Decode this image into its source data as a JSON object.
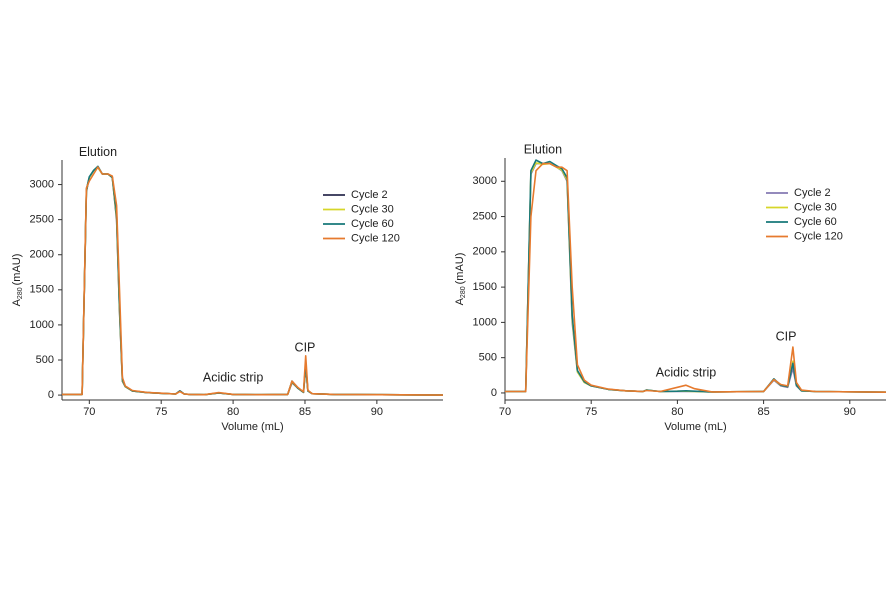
{
  "chart_data": [
    {
      "type": "line",
      "xlabel": "Volume (mL)",
      "ylabel": "A",
      "ylabel_sub": "280",
      "ylabel_unit": "(mAU)",
      "xlim": [
        68.1,
        94.6
      ],
      "ylim": [
        -70,
        3350
      ],
      "xticks": [
        70,
        75,
        80,
        85,
        90
      ],
      "yticks": [
        0,
        500,
        1000,
        1500,
        2000,
        2500,
        3000
      ],
      "grid": false,
      "legend": "upper right",
      "x": [
        68.1,
        69.5,
        69.8,
        70.0,
        70.3,
        70.6,
        70.9,
        71.3,
        71.6,
        71.9,
        72.1,
        72.3,
        72.5,
        73,
        74,
        75,
        76,
        76.3,
        76.6,
        77,
        78,
        79,
        80,
        82,
        83.8,
        84.1,
        84.5,
        84.9,
        85.05,
        85.2,
        85.5,
        87,
        90,
        94.6
      ],
      "series": [
        {
          "name": "Cycle 2",
          "color": "#2b2d4f",
          "values": [
            10,
            10,
            2900,
            3100,
            3200,
            3250,
            3150,
            3150,
            3100,
            2500,
            1200,
            200,
            120,
            60,
            35,
            25,
            15,
            60,
            15,
            10,
            5,
            30,
            10,
            5,
            10,
            180,
            100,
            40,
            400,
            60,
            20,
            10,
            5,
            0
          ]
        },
        {
          "name": "Cycle 30",
          "color": "#d6d62a",
          "values": [
            10,
            10,
            2920,
            3100,
            3200,
            3240,
            3150,
            3150,
            3100,
            2550,
            1250,
            210,
            120,
            60,
            35,
            25,
            15,
            55,
            15,
            10,
            5,
            30,
            10,
            5,
            10,
            190,
            100,
            40,
            430,
            60,
            20,
            10,
            5,
            0
          ]
        },
        {
          "name": "Cycle 60",
          "color": "#17787a",
          "values": [
            10,
            10,
            2930,
            3110,
            3200,
            3260,
            3150,
            3150,
            3100,
            2600,
            1300,
            220,
            125,
            60,
            35,
            25,
            15,
            60,
            15,
            10,
            5,
            30,
            10,
            5,
            10,
            200,
            100,
            40,
            450,
            60,
            20,
            10,
            5,
            0
          ]
        },
        {
          "name": "Cycle 120",
          "color": "#e67a2e",
          "values": [
            10,
            10,
            2950,
            3050,
            3150,
            3250,
            3150,
            3150,
            3120,
            2700,
            1500,
            250,
            130,
            65,
            38,
            27,
            15,
            50,
            15,
            10,
            5,
            35,
            10,
            5,
            10,
            200,
            110,
            45,
            560,
            70,
            20,
            10,
            5,
            0
          ]
        }
      ],
      "annotations": [
        {
          "text": "Elution",
          "x": 70.6,
          "y": 3457
        },
        {
          "text": "Acidic strip",
          "x": 80,
          "y": 243
        },
        {
          "text": "CIP",
          "x": 85,
          "y": 670
        }
      ]
    },
    {
      "type": "line",
      "xlabel": "Volume (mL)",
      "ylabel": "A",
      "ylabel_sub": "280",
      "ylabel_unit": "(mAU)",
      "xlim": [
        70,
        92.1
      ],
      "ylim": [
        -100,
        3330
      ],
      "xticks": [
        70,
        75,
        80,
        85,
        90
      ],
      "yticks": [
        0,
        500,
        1000,
        1500,
        2000,
        2500,
        3000
      ],
      "grid": false,
      "legend": "upper right",
      "x": [
        70,
        71.2,
        71.5,
        71.8,
        72.2,
        72.6,
        73,
        73.3,
        73.6,
        73.9,
        74.2,
        74.6,
        75,
        76,
        77,
        78,
        78.2,
        79,
        80,
        80.5,
        81,
        82,
        85,
        85.6,
        86,
        86.4,
        86.7,
        86.9,
        87.2,
        88,
        92.1
      ],
      "series": [
        {
          "name": "Cycle 2",
          "color": "#8479b3",
          "values": [
            20,
            20,
            3100,
            3250,
            3250,
            3250,
            3200,
            3150,
            3000,
            1000,
            300,
            150,
            100,
            50,
            30,
            20,
            40,
            20,
            20,
            20,
            20,
            15,
            20,
            180,
            100,
            80,
            350,
            100,
            30,
            20,
            10
          ]
        },
        {
          "name": "Cycle 30",
          "color": "#d6d62a",
          "values": [
            20,
            20,
            3120,
            3260,
            3240,
            3250,
            3200,
            3160,
            3020,
            1050,
            300,
            150,
            100,
            50,
            30,
            20,
            40,
            20,
            25,
            25,
            20,
            15,
            20,
            190,
            110,
            90,
            450,
            110,
            30,
            20,
            10
          ]
        },
        {
          "name": "Cycle 60",
          "color": "#17787a",
          "values": [
            20,
            20,
            3150,
            3300,
            3250,
            3280,
            3220,
            3180,
            3050,
            1100,
            320,
            160,
            100,
            50,
            30,
            20,
            40,
            20,
            25,
            30,
            25,
            15,
            20,
            200,
            110,
            90,
            420,
            110,
            30,
            20,
            10
          ]
        },
        {
          "name": "Cycle 120",
          "color": "#e67a2e",
          "values": [
            20,
            20,
            2500,
            3150,
            3250,
            3250,
            3200,
            3200,
            3150,
            1500,
            400,
            180,
            110,
            55,
            30,
            20,
            35,
            20,
            80,
            110,
            60,
            15,
            20,
            190,
            120,
            100,
            650,
            150,
            40,
            20,
            10
          ]
        }
      ],
      "annotations": [
        {
          "text": "Elution",
          "x": 72.2,
          "y": 3437
        },
        {
          "text": "Acidic strip",
          "x": 80.5,
          "y": 283
        },
        {
          "text": "CIP",
          "x": 86.3,
          "y": 792
        }
      ]
    }
  ]
}
